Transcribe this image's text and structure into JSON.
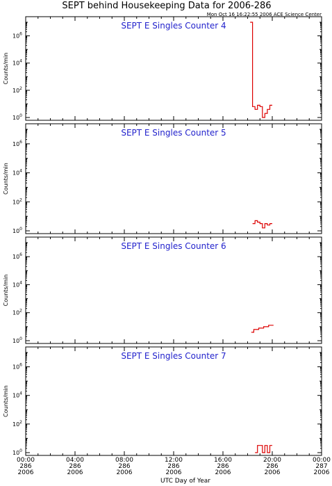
{
  "title": "SEPT behind Housekeeping Data for 2006-286",
  "timestamp": "Mon Oct 16 16:22:55 2006 ACE Science Center",
  "xlabel": "UTC Day of Year",
  "ylabel": "Counts/min",
  "colors": {
    "data": "#dd0000",
    "panel_title": "#2222cc",
    "axes": "#000000"
  },
  "x_ticks": [
    {
      "time": "00:00",
      "doy": "286",
      "year": "2006"
    },
    {
      "time": "04:00",
      "doy": "286",
      "year": "2006"
    },
    {
      "time": "08:00",
      "doy": "286",
      "year": "2006"
    },
    {
      "time": "12:00",
      "doy": "286",
      "year": "2006"
    },
    {
      "time": "16:00",
      "doy": "286",
      "year": "2006"
    },
    {
      "time": "20:00",
      "doy": "286",
      "year": "2006"
    },
    {
      "time": "00:00",
      "doy": "287",
      "year": "2006"
    }
  ],
  "chart_data": [
    {
      "type": "line",
      "title": "SEPT E Singles Counter 4",
      "xlim": [
        0,
        24
      ],
      "ylim_log10": [
        0,
        7
      ],
      "y_ticks": [
        "10^0",
        "10^2",
        "10^4",
        "10^6"
      ],
      "series": [
        {
          "x": [
            18.2,
            18.4,
            18.6,
            18.8,
            19.0,
            19.2,
            19.4,
            19.6,
            19.8
          ],
          "y_log10": [
            7.0,
            0.8,
            0.6,
            0.9,
            0.8,
            0.0,
            0.3,
            0.6,
            0.9
          ]
        }
      ]
    },
    {
      "type": "line",
      "title": "SEPT E Singles Counter 5",
      "xlim": [
        0,
        24
      ],
      "ylim_log10": [
        0,
        7
      ],
      "y_ticks": [
        "10^0",
        "10^2",
        "10^4",
        "10^6"
      ],
      "series": [
        {
          "x": [
            18.4,
            18.6,
            18.8,
            19.0,
            19.2,
            19.4,
            19.6,
            19.8
          ],
          "y_log10": [
            0.5,
            0.7,
            0.6,
            0.5,
            0.2,
            0.5,
            0.4,
            0.5
          ]
        }
      ]
    },
    {
      "type": "line",
      "title": "SEPT E Singles Counter 6",
      "xlim": [
        0,
        24
      ],
      "ylim_log10": [
        0,
        7
      ],
      "y_ticks": [
        "10^0",
        "10^2",
        "10^4",
        "10^6"
      ],
      "series": [
        {
          "x": [
            18.3,
            18.5,
            18.7,
            18.9,
            19.1,
            19.3,
            19.5,
            19.7,
            19.9
          ],
          "y_log10": [
            0.6,
            0.8,
            0.8,
            0.9,
            0.9,
            1.0,
            1.0,
            1.1,
            1.1
          ]
        }
      ]
    },
    {
      "type": "line",
      "title": "SEPT E Singles Counter 7",
      "xlim": [
        0,
        24
      ],
      "ylim_log10": [
        0,
        7
      ],
      "y_ticks": [
        "10^0",
        "10^2",
        "10^4",
        "10^6"
      ],
      "series": [
        {
          "x": [
            18.6,
            18.8,
            19.0,
            19.2,
            19.4,
            19.6,
            19.8
          ],
          "y_log10": [
            0.0,
            0.5,
            0.5,
            0.0,
            0.5,
            0.0,
            0.5
          ]
        }
      ]
    }
  ]
}
